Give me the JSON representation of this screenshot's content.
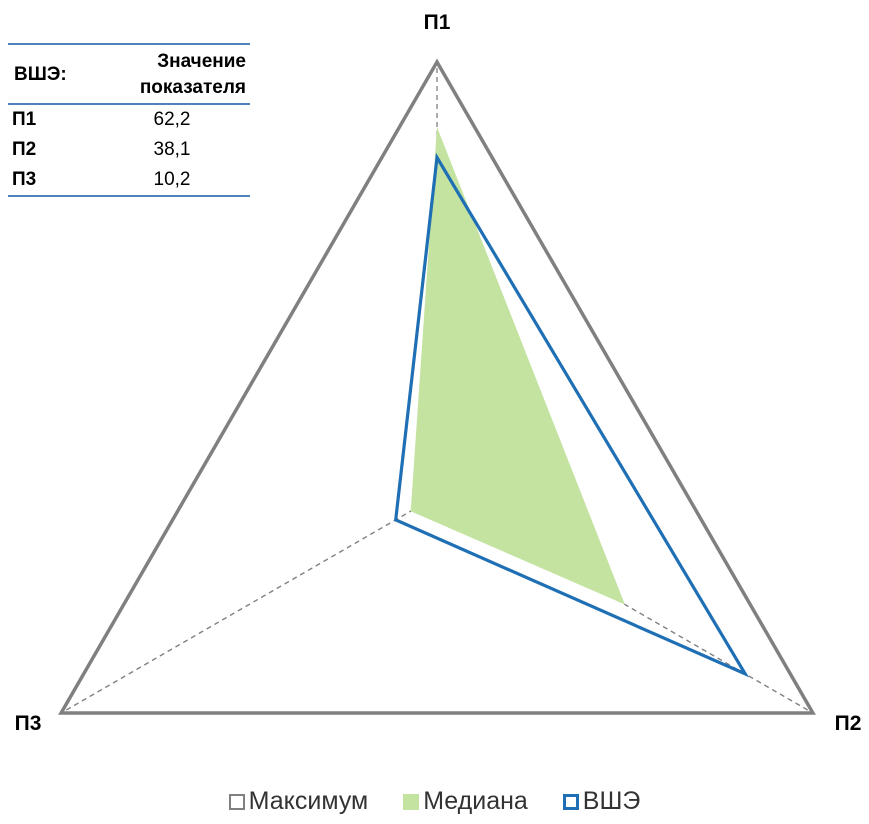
{
  "chart_data": {
    "type": "radar",
    "axes": [
      "П1",
      "П2",
      "П3"
    ],
    "rmax": 100,
    "series": [
      {
        "name": "Максимум",
        "values": [
          100,
          100,
          100
        ],
        "color": "#808080",
        "style": "outline"
      },
      {
        "name": "Медиана",
        "values": [
          85,
          50,
          7
        ],
        "color": "#c4e3a1",
        "style": "fill"
      },
      {
        "name": "ВШЭ",
        "values": [
          78,
          82,
          11
        ],
        "color": "#1f6fb4",
        "style": "outline"
      }
    ],
    "grid": "dashed spokes",
    "legend_position": "bottom"
  },
  "table": {
    "header_left": "ВШЭ:",
    "header_right_line1": "Значение",
    "header_right_line2": "показателя",
    "rows": [
      {
        "name": "П1",
        "value": "62,2"
      },
      {
        "name": "П2",
        "value": "38,1"
      },
      {
        "name": "П3",
        "value": "10,2"
      }
    ]
  }
}
